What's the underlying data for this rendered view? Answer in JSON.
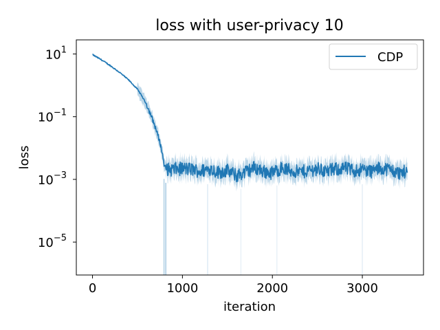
{
  "chart_data": {
    "type": "line",
    "title": "loss with user-privacy  10",
    "xlabel": "iteration",
    "ylabel": "loss",
    "xlim": [
      -180,
      3680
    ],
    "ylim_log10": [
      -6.05,
      1.45
    ],
    "yscale": "log",
    "grid": false,
    "legend_position": "top-right",
    "x_ticks": [
      {
        "value": 0,
        "label": "0"
      },
      {
        "value": 1000,
        "label": "1000"
      },
      {
        "value": 2000,
        "label": "2000"
      },
      {
        "value": 3000,
        "label": "3000"
      }
    ],
    "y_ticks": [
      {
        "exp": 1,
        "base": "10",
        "exp_label": "1"
      },
      {
        "exp": -1,
        "base": "10",
        "exp_label": "−1"
      },
      {
        "exp": -3,
        "base": "10",
        "exp_label": "−3"
      },
      {
        "exp": -5,
        "base": "10",
        "exp_label": "−5"
      }
    ],
    "series": [
      {
        "name": "CDP",
        "color": "#1f77b4",
        "band_color": "#1f77b4",
        "x": [
          0,
          100,
          200,
          300,
          400,
          500,
          550,
          600,
          650,
          700,
          750,
          780,
          800,
          850,
          900,
          1000,
          1100,
          1200,
          1300,
          1400,
          1500,
          1600,
          1700,
          1800,
          1900,
          2000,
          2100,
          2200,
          2300,
          2400,
          2500,
          2600,
          2700,
          2800,
          2900,
          3000,
          3100,
          3200,
          3300,
          3400,
          3500
        ],
        "y": [
          9.5,
          6.5,
          4.2,
          2.6,
          1.5,
          0.75,
          0.45,
          0.25,
          0.11,
          0.045,
          0.015,
          0.006,
          0.0025,
          0.002,
          0.0021,
          0.0022,
          0.0021,
          0.0018,
          0.0022,
          0.0017,
          0.0019,
          0.0013,
          0.0017,
          0.0024,
          0.0018,
          0.0016,
          0.0023,
          0.0019,
          0.0017,
          0.0019,
          0.0022,
          0.0018,
          0.0021,
          0.0023,
          0.0019,
          0.0021,
          0.0018,
          0.0023,
          0.0021,
          0.0016,
          0.0018
        ]
      }
    ]
  }
}
